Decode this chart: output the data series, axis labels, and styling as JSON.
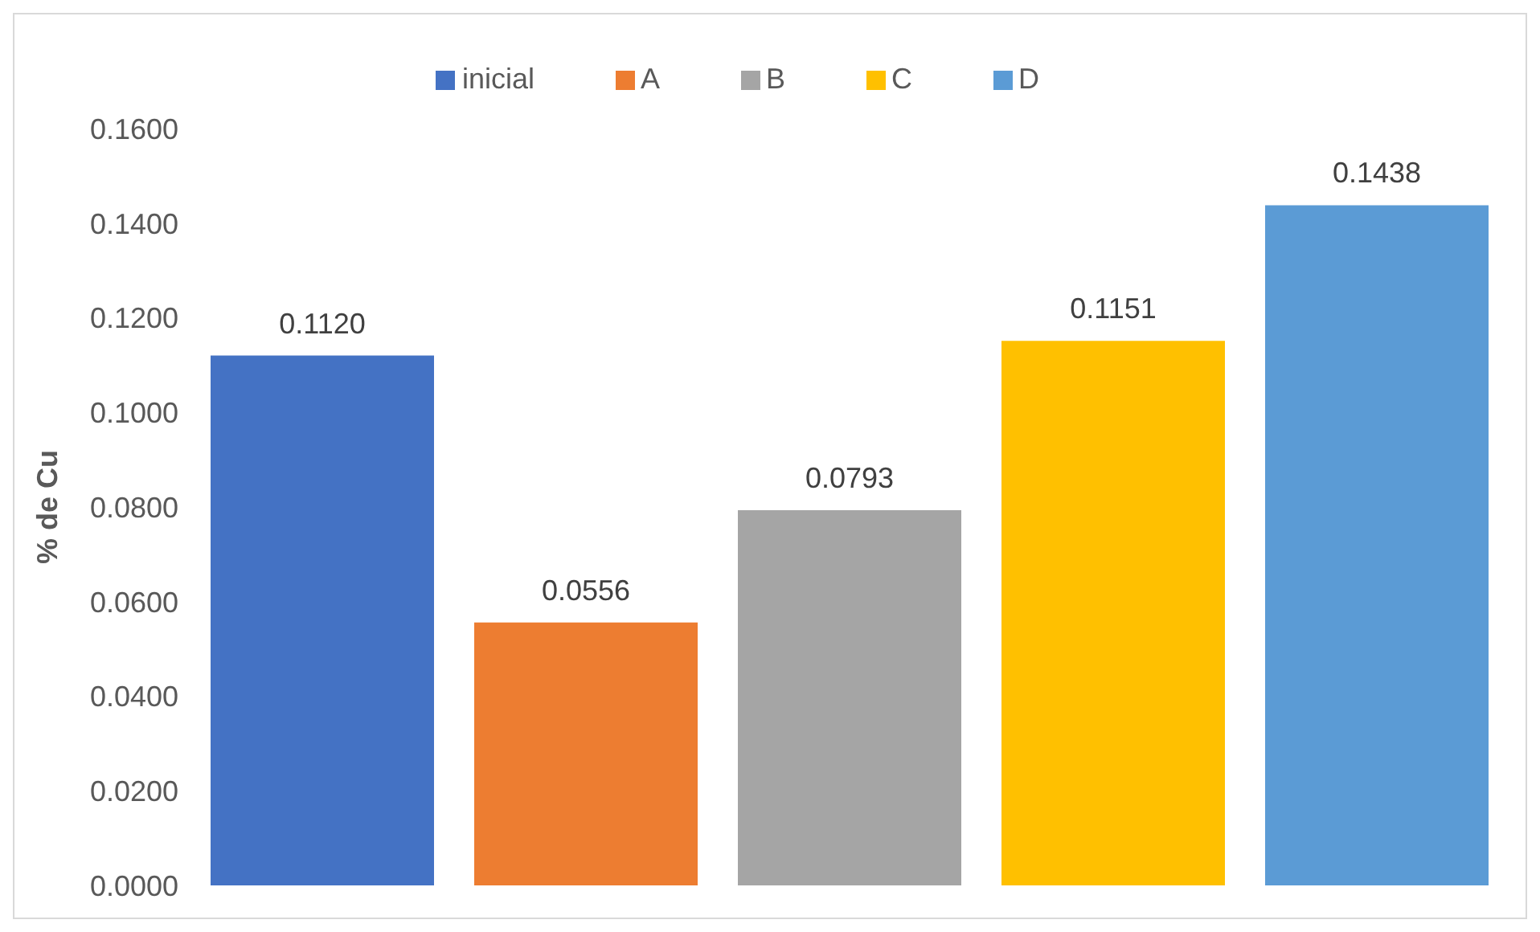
{
  "chart_data": {
    "type": "bar",
    "ylabel": "% de Cu",
    "categories": [
      null
    ],
    "series": [
      {
        "name": "inicial",
        "color": "#4472c4",
        "values": [
          0.112
        ],
        "value_labels": [
          "0.1120"
        ]
      },
      {
        "name": "A",
        "color": "#ed7d31",
        "values": [
          0.0556
        ],
        "value_labels": [
          "0.0556"
        ]
      },
      {
        "name": "B",
        "color": "#a5a5a5",
        "values": [
          0.0793
        ],
        "value_labels": [
          "0.0793"
        ]
      },
      {
        "name": "C",
        "color": "#ffc000",
        "values": [
          0.1151
        ],
        "value_labels": [
          "0.1151"
        ]
      },
      {
        "name": "D",
        "color": "#5b9bd5",
        "values": [
          0.1438
        ],
        "value_labels": [
          "0.1438"
        ]
      }
    ],
    "ylim": [
      0,
      0.16
    ],
    "yticks": [
      {
        "value": 0,
        "label": "0.0000"
      },
      {
        "value": 0.02,
        "label": "0.0200"
      },
      {
        "value": 0.04,
        "label": "0.0400"
      },
      {
        "value": 0.06,
        "label": "0.0600"
      },
      {
        "value": 0.08,
        "label": "0.0800"
      },
      {
        "value": 0.1,
        "label": "0.1000"
      },
      {
        "value": 0.12,
        "label": "0.1200"
      },
      {
        "value": 0.14,
        "label": "0.1400"
      },
      {
        "value": 0.16,
        "label": "0.1600"
      }
    ],
    "grid": false,
    "legend": "top"
  }
}
